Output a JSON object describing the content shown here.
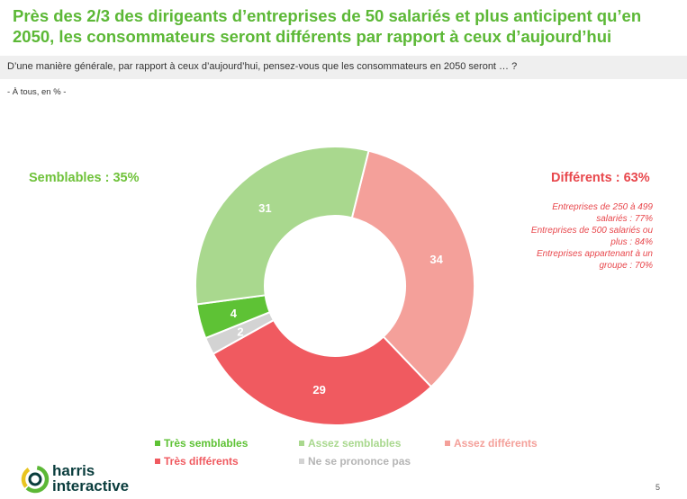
{
  "title": "Près des 2/3 des dirigeants d’entreprises de 50 salariés et plus anticipent qu’en 2050, les consommateurs seront différents par rapport à ceux d’aujourd’hui",
  "question": "D’une manière générale, par rapport à ceux d’aujourd’hui, pensez-vous que les consommateurs en 2050 seront … ?",
  "base": "- À tous, en % -",
  "left_summary": "Semblables : 35%",
  "right_summary": "Différents : 63%",
  "right_notes": [
    "Entreprises de 250 à 499",
    "salariés : 77%",
    "Entreprises de 500 salariés ou",
    "plus : 84%",
    "Entreprises appartenant à un",
    "groupe : 70%"
  ],
  "chart_data": {
    "type": "pie",
    "donut": true,
    "categories": [
      "Très semblables",
      "Assez semblables",
      "Assez différents",
      "Très différents",
      "Ne se prononce pas"
    ],
    "values": [
      4,
      31,
      34,
      29,
      2
    ],
    "colors": [
      "#5ec235",
      "#a9d88e",
      "#f4a09a",
      "#f05a60",
      "#d3d3d3"
    ],
    "slice_order": [
      "Assez différents",
      "Très différents",
      "Ne se prononce pas",
      "Très semblables",
      "Assez semblables"
    ],
    "legend_position": "bottom"
  },
  "legend": [
    {
      "label": "Très semblables",
      "color": "#5ec235"
    },
    {
      "label": "Assez semblables",
      "color": "#a9d88e"
    },
    {
      "label": "Assez différents",
      "color": "#f4a09a"
    },
    {
      "label": "Très différents",
      "color": "#f05a60"
    },
    {
      "label": "Ne se prononce pas",
      "color": "#d3d3d3"
    }
  ],
  "logo_text_line1": "harris",
  "logo_text_line2": "interactive",
  "page_number": "5"
}
